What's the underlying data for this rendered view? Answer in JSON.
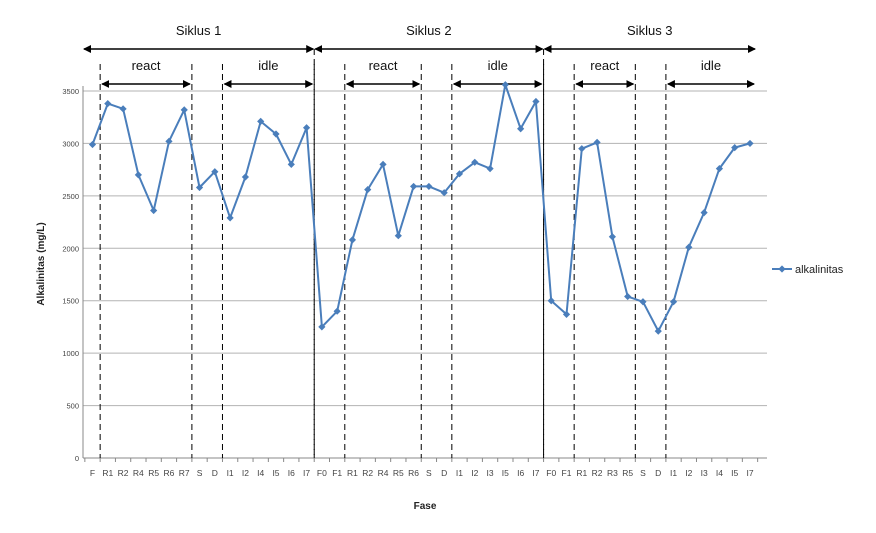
{
  "chart_data": {
    "type": "line",
    "title": "",
    "xlabel": "Fase",
    "ylabel": "Alkalinitas (mg/L)",
    "ylim": [
      0,
      3500
    ],
    "yticks": [
      0,
      500,
      1000,
      1500,
      2000,
      2500,
      3000,
      3500
    ],
    "grid": "horizontal",
    "legend_position": "right",
    "series_color": "#4a7ebb",
    "categories": [
      "F",
      "R1",
      "R2",
      "R4",
      "R5",
      "R6",
      "R7",
      "S",
      "D",
      "I1",
      "I2",
      "I4",
      "I5",
      "I6",
      "I7",
      "F0",
      "F1",
      "R1",
      "R2",
      "R4",
      "R5",
      "R6",
      "S",
      "D",
      "I1",
      "I2",
      "I3",
      "I5",
      "I6",
      "I7",
      "F0",
      "F1",
      "R1",
      "R2",
      "R3",
      "R5",
      "S",
      "D",
      "I1",
      "I2",
      "I3",
      "I4",
      "I5",
      "I7"
    ],
    "series": [
      {
        "name": "alkalinitas",
        "values": [
          2990,
          3380,
          3330,
          2700,
          2360,
          3020,
          3320,
          2580,
          2730,
          2290,
          2680,
          3210,
          3090,
          2800,
          3150,
          1250,
          1400,
          2080,
          2560,
          2800,
          2120,
          2590,
          2590,
          2530,
          2710,
          2820,
          2760,
          3560,
          3140,
          3400,
          1500,
          1370,
          2950,
          3010,
          2110,
          1540,
          1490,
          1210,
          1490,
          2010,
          2340,
          2760,
          2960,
          3000
        ]
      }
    ],
    "cycles": [
      {
        "label": "Siklus 1",
        "from": 0,
        "to": 14
      },
      {
        "label": "Siklus 2",
        "from": 15,
        "to": 29
      },
      {
        "label": "Siklus 3",
        "from": 30,
        "to": 43
      }
    ],
    "phases": [
      {
        "label": "react",
        "from": 1,
        "to": 6
      },
      {
        "label": "idle",
        "from": 9,
        "to": 14
      },
      {
        "label": "react",
        "from": 17,
        "to": 21
      },
      {
        "label": "idle",
        "from": 24,
        "to": 29
      },
      {
        "label": "react",
        "from": 32,
        "to": 35
      },
      {
        "label": "idle",
        "from": 38,
        "to": 43
      }
    ]
  }
}
